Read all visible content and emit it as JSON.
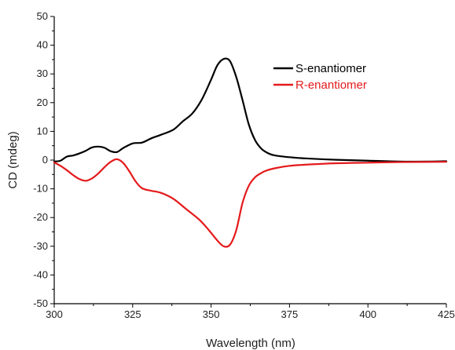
{
  "chart_data": {
    "type": "line",
    "xlabel": "Wavelength (nm)",
    "ylabel": "CD (mdeg)",
    "xlim": [
      300,
      425
    ],
    "ylim": [
      -50,
      50
    ],
    "x_ticks": [
      300,
      325,
      350,
      375,
      400,
      425
    ],
    "y_ticks": [
      -50,
      -40,
      -30,
      -20,
      -10,
      0,
      10,
      20,
      30,
      40,
      50
    ],
    "grid": false,
    "legend_position": "top-right",
    "series": [
      {
        "name": "S-enantiomer",
        "color": "#000000",
        "points": [
          [
            300,
            -0.5
          ],
          [
            302,
            -0.2
          ],
          [
            304,
            1.2
          ],
          [
            306,
            1.6
          ],
          [
            308,
            2.3
          ],
          [
            310,
            3.2
          ],
          [
            312,
            4.4
          ],
          [
            314,
            4.7
          ],
          [
            316,
            4.3
          ],
          [
            318,
            3.1
          ],
          [
            320,
            2.8
          ],
          [
            322,
            4.2
          ],
          [
            325,
            5.8
          ],
          [
            328,
            6.1
          ],
          [
            331,
            7.6
          ],
          [
            334,
            8.8
          ],
          [
            338,
            10.6
          ],
          [
            341,
            13.5
          ],
          [
            344,
            16.2
          ],
          [
            347,
            21.0
          ],
          [
            350,
            28.0
          ],
          [
            352,
            33.0
          ],
          [
            354,
            35.2
          ],
          [
            356,
            34.5
          ],
          [
            358,
            29.0
          ],
          [
            360,
            21.0
          ],
          [
            362,
            12.5
          ],
          [
            364,
            7.0
          ],
          [
            366,
            4.0
          ],
          [
            368,
            2.5
          ],
          [
            370,
            1.7
          ],
          [
            375,
            1.0
          ],
          [
            380,
            0.6
          ],
          [
            390,
            0.1
          ],
          [
            400,
            -0.2
          ],
          [
            410,
            -0.5
          ],
          [
            420,
            -0.5
          ],
          [
            425,
            -0.4
          ]
        ]
      },
      {
        "name": "R-enantiomer",
        "color": "#e41a1c",
        "points": [
          [
            300,
            -0.8
          ],
          [
            302,
            -2.0
          ],
          [
            304,
            -3.5
          ],
          [
            306,
            -5.2
          ],
          [
            308,
            -6.6
          ],
          [
            310,
            -7.2
          ],
          [
            312,
            -6.4
          ],
          [
            314,
            -4.7
          ],
          [
            316,
            -2.5
          ],
          [
            318,
            -0.6
          ],
          [
            320,
            0.3
          ],
          [
            322,
            -1.0
          ],
          [
            324,
            -4.0
          ],
          [
            326,
            -7.5
          ],
          [
            328,
            -9.8
          ],
          [
            331,
            -10.7
          ],
          [
            334,
            -11.4
          ],
          [
            338,
            -13.5
          ],
          [
            342,
            -17.0
          ],
          [
            346,
            -20.5
          ],
          [
            349,
            -24.0
          ],
          [
            352,
            -28.0
          ],
          [
            354,
            -30.0
          ],
          [
            356,
            -29.5
          ],
          [
            358,
            -24.5
          ],
          [
            360,
            -15.0
          ],
          [
            362,
            -9.0
          ],
          [
            364,
            -6.0
          ],
          [
            366,
            -4.5
          ],
          [
            368,
            -3.5
          ],
          [
            371,
            -2.7
          ],
          [
            375,
            -2.0
          ],
          [
            380,
            -1.6
          ],
          [
            390,
            -1.1
          ],
          [
            400,
            -0.9
          ],
          [
            410,
            -0.7
          ],
          [
            425,
            -0.6
          ]
        ]
      }
    ]
  }
}
